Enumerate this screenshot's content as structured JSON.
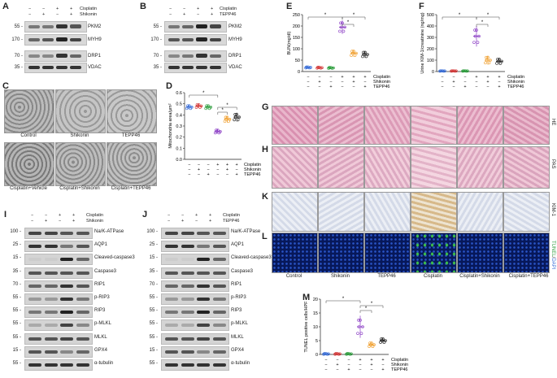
{
  "panels": {
    "A": "A",
    "B": "B",
    "C": "C",
    "D": "D",
    "E": "E",
    "F": "F",
    "G": "G",
    "H": "H",
    "I": "I",
    "J": "J",
    "K": "K",
    "L": "L",
    "M": "M"
  },
  "treat": {
    "cisplatin": "Cisplatin",
    "shikonin": "Shikonin",
    "tepp46": "TEPP46",
    "minus": "−",
    "plus": "+"
  },
  "blotA": {
    "mw": [
      "55 -",
      "170 -",
      "70 -",
      "35 -"
    ],
    "labels": [
      "PKM2",
      "MYH9",
      "DRP1",
      "VDAC"
    ]
  },
  "blotB": {
    "mw": [
      "55 -",
      "170 -",
      "70 -",
      "35 -"
    ],
    "labels": [
      "PKM2",
      "MYH9",
      "DRP1",
      "VDAC"
    ]
  },
  "blotI": {
    "mw": [
      "100 -",
      "25 -",
      "15 -",
      "35 -",
      "70 -",
      "55 -",
      "55 -",
      "55 -",
      "55 -",
      "15 -",
      "55 -"
    ],
    "labels": [
      "Na/K-ATPase",
      "AQP1",
      "Cleaved-caspase3",
      "Caspase3",
      "RIP1",
      "p-RIP3",
      "RIP3",
      "p-MLKL",
      "MLKL",
      "GPX4",
      "α-tubulin"
    ]
  },
  "blotJ": {
    "mw": [
      "100 -",
      "25 -",
      "15 -",
      "35 -",
      "70 -",
      "55 -",
      "55 -",
      "55 -",
      "55 -",
      "15 -",
      "55 -"
    ],
    "labels": [
      "Na/K-ATPase",
      "AQP1",
      "Cleaved-caspase3",
      "Caspase3",
      "RIP1",
      "p-RIP3",
      "RIP3",
      "p-MLKL",
      "MLKL",
      "GPX4",
      "α-tubulin"
    ]
  },
  "panelC": {
    "top": [
      "Control",
      "Shikonin",
      "TEPP46"
    ],
    "bottom": [
      "Cisplatin+Vehicle",
      "Cisplatin+Shikonin",
      "Cisplatin+TEPP46"
    ]
  },
  "histo": {
    "groups": [
      "Control",
      "Shikonin",
      "TEPP46",
      "Cisplatin",
      "Cisplatin+Shikonin",
      "Cisplatin+TEPP46"
    ],
    "rows": {
      "G": "HE",
      "H": "PAS",
      "K": "KIM-1",
      "L_tunel": "TUNEL",
      "L_dapi": "DAPI"
    }
  },
  "colors": [
    "#3b6fd8",
    "#d43a3a",
    "#2e9e3e",
    "#8a3cc4",
    "#f0a030",
    "#222222"
  ],
  "star": "*",
  "chart_data": [
    {
      "panel": "D",
      "type": "scatter",
      "ylabel": "Mitochondria area/μm²",
      "ylim": [
        0,
        0.6
      ],
      "yticks": [
        "0.0",
        "0.1",
        "0.2",
        "0.3",
        "0.4",
        "0.5",
        "0.6"
      ],
      "categories": [
        "1",
        "2",
        "3",
        "4",
        "5",
        "6"
      ],
      "values": [
        0.47,
        0.48,
        0.47,
        0.25,
        0.36,
        0.38
      ],
      "err": [
        0.02,
        0.02,
        0.02,
        0.02,
        0.03,
        0.04
      ]
    },
    {
      "panel": "E",
      "type": "scatter",
      "ylabel": "BUN(mg/dl)",
      "ylim": [
        0,
        250
      ],
      "yticks": [
        "0",
        "50",
        "100",
        "150",
        "200",
        "250"
      ],
      "categories": [
        "1",
        "2",
        "3",
        "4",
        "5",
        "6"
      ],
      "values": [
        18,
        17,
        16,
        195,
        80,
        75
      ],
      "err": [
        3,
        3,
        3,
        30,
        15,
        15
      ]
    },
    {
      "panel": "F",
      "type": "scatter",
      "ylabel": "Urine KIM-1/creatinine (ng/mg)",
      "ylim": [
        0,
        500
      ],
      "yticks": [
        "0",
        "100",
        "200",
        "300",
        "400",
        "500"
      ],
      "categories": [
        "1",
        "2",
        "3",
        "4",
        "5",
        "6"
      ],
      "values": [
        5,
        5,
        5,
        310,
        100,
        90
      ],
      "err": [
        2,
        2,
        2,
        90,
        40,
        30
      ]
    },
    {
      "panel": "M",
      "type": "scatter",
      "ylabel": "TUNEL positive cells/HPF",
      "ylim": [
        0,
        20
      ],
      "yticks": [
        "0",
        "5",
        "10",
        "15",
        "20"
      ],
      "categories": [
        "1",
        "2",
        "3",
        "4",
        "5",
        "6"
      ],
      "values": [
        0.2,
        0.2,
        0.2,
        10,
        3.5,
        5
      ],
      "err": [
        0.2,
        0.2,
        0.2,
        4,
        1,
        1
      ]
    }
  ]
}
